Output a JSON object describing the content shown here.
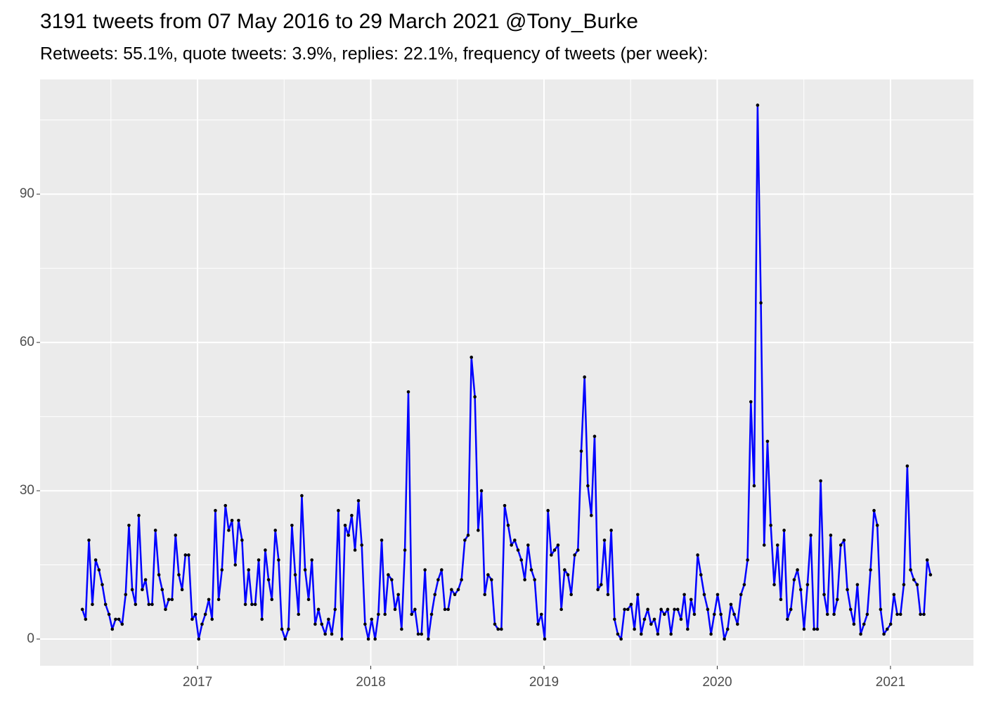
{
  "chart_data": {
    "type": "line",
    "title": "3191 tweets from 07 May 2016 to 29 March 2021 @Tony_Burke",
    "subtitle": "Retweets: 55.1%, quote tweets: 3.9%, replies: 22.1%, frequency of tweets (per week):",
    "color": "#0000ff",
    "point_color": "#000000",
    "grid": true,
    "xlim": [
      2016.091,
      2021.479
    ],
    "xticks": [
      2017,
      2018,
      2019,
      2020,
      2021
    ],
    "ylim": [
      -5.4,
      113.2
    ],
    "yticks": [
      0,
      30,
      60,
      90
    ],
    "x": [
      2016.335,
      2016.354,
      2016.373,
      2016.393,
      2016.412,
      2016.431,
      2016.45,
      2016.469,
      2016.489,
      2016.508,
      2016.527,
      2016.546,
      2016.565,
      2016.585,
      2016.604,
      2016.623,
      2016.642,
      2016.661,
      2016.681,
      2016.7,
      2016.719,
      2016.738,
      2016.757,
      2016.777,
      2016.796,
      2016.815,
      2016.834,
      2016.853,
      2016.873,
      2016.892,
      2016.911,
      2016.93,
      2016.949,
      2016.969,
      2016.988,
      2017.007,
      2017.026,
      2017.045,
      2017.065,
      2017.084,
      2017.103,
      2017.122,
      2017.141,
      2017.161,
      2017.18,
      2017.199,
      2017.218,
      2017.237,
      2017.257,
      2017.276,
      2017.295,
      2017.314,
      2017.333,
      2017.353,
      2017.372,
      2017.391,
      2017.41,
      2017.429,
      2017.449,
      2017.468,
      2017.487,
      2017.506,
      2017.525,
      2017.545,
      2017.564,
      2017.583,
      2017.602,
      2017.621,
      2017.641,
      2017.66,
      2017.679,
      2017.698,
      2017.717,
      2017.737,
      2017.756,
      2017.775,
      2017.794,
      2017.813,
      2017.833,
      2017.852,
      2017.871,
      2017.89,
      2017.909,
      2017.929,
      2017.948,
      2017.967,
      2017.986,
      2018.005,
      2018.025,
      2018.044,
      2018.063,
      2018.082,
      2018.101,
      2018.121,
      2018.14,
      2018.159,
      2018.178,
      2018.197,
      2018.217,
      2018.236,
      2018.255,
      2018.274,
      2018.293,
      2018.313,
      2018.332,
      2018.351,
      2018.37,
      2018.389,
      2018.409,
      2018.428,
      2018.447,
      2018.466,
      2018.485,
      2018.505,
      2018.524,
      2018.543,
      2018.562,
      2018.581,
      2018.601,
      2018.62,
      2018.639,
      2018.658,
      2018.677,
      2018.697,
      2018.716,
      2018.735,
      2018.754,
      2018.773,
      2018.793,
      2018.812,
      2018.831,
      2018.85,
      2018.869,
      2018.889,
      2018.908,
      2018.927,
      2018.946,
      2018.965,
      2018.985,
      2019.004,
      2019.023,
      2019.042,
      2019.061,
      2019.081,
      2019.1,
      2019.119,
      2019.138,
      2019.157,
      2019.177,
      2019.196,
      2019.215,
      2019.234,
      2019.253,
      2019.273,
      2019.292,
      2019.311,
      2019.33,
      2019.349,
      2019.369,
      2019.388,
      2019.407,
      2019.426,
      2019.445,
      2019.465,
      2019.484,
      2019.503,
      2019.522,
      2019.541,
      2019.561,
      2019.58,
      2019.599,
      2019.618,
      2019.637,
      2019.657,
      2019.676,
      2019.695,
      2019.714,
      2019.733,
      2019.753,
      2019.772,
      2019.791,
      2019.81,
      2019.829,
      2019.849,
      2019.868,
      2019.887,
      2019.906,
      2019.925,
      2019.945,
      2019.964,
      2019.983,
      2020.002,
      2020.021,
      2020.041,
      2020.06,
      2020.079,
      2020.098,
      2020.117,
      2020.137,
      2020.156,
      2020.175,
      2020.194,
      2020.213,
      2020.233,
      2020.252,
      2020.271,
      2020.29,
      2020.309,
      2020.329,
      2020.348,
      2020.367,
      2020.386,
      2020.405,
      2020.425,
      2020.444,
      2020.463,
      2020.482,
      2020.501,
      2020.521,
      2020.54,
      2020.559,
      2020.578,
      2020.597,
      2020.617,
      2020.636,
      2020.655,
      2020.674,
      2020.693,
      2020.713,
      2020.732,
      2020.751,
      2020.77,
      2020.789,
      2020.809,
      2020.828,
      2020.847,
      2020.866,
      2020.885,
      2020.905,
      2020.924,
      2020.943,
      2020.962,
      2020.981,
      2021.001,
      2021.02,
      2021.039,
      2021.058,
      2021.077,
      2021.097,
      2021.116,
      2021.135,
      2021.154,
      2021.173,
      2021.193,
      2021.212,
      2021.231
    ],
    "values": [
      6,
      4,
      20,
      7,
      16,
      14,
      11,
      7,
      5,
      2,
      4,
      4,
      3,
      9,
      23,
      10,
      7,
      25,
      10,
      12,
      7,
      7,
      22,
      13,
      10,
      6,
      8,
      8,
      21,
      13,
      10,
      17,
      17,
      4,
      5,
      0,
      3,
      5,
      8,
      4,
      26,
      8,
      14,
      27,
      22,
      24,
      15,
      24,
      20,
      7,
      14,
      7,
      7,
      16,
      4,
      18,
      12,
      8,
      22,
      16,
      2,
      0,
      2,
      23,
      13,
      5,
      29,
      14,
      8,
      16,
      3,
      6,
      3,
      1,
      4,
      1,
      6,
      26,
      0,
      23,
      21,
      25,
      18,
      28,
      19,
      3,
      0,
      4,
      0,
      5,
      20,
      5,
      13,
      12,
      6,
      9,
      2,
      18,
      50,
      5,
      6,
      1,
      1,
      14,
      0,
      5,
      9,
      12,
      14,
      6,
      6,
      10,
      9,
      10,
      12,
      20,
      21,
      57,
      49,
      22,
      30,
      9,
      13,
      12,
      3,
      2,
      2,
      27,
      23,
      19,
      20,
      18,
      16,
      12,
      19,
      14,
      12,
      3,
      5,
      0,
      26,
      17,
      18,
      19,
      6,
      14,
      13,
      9,
      17,
      18,
      38,
      53,
      31,
      25,
      41,
      10,
      11,
      20,
      9,
      22,
      4,
      1,
      0,
      6,
      6,
      7,
      2,
      9,
      1,
      4,
      6,
      3,
      4,
      1,
      6,
      5,
      6,
      1,
      6,
      6,
      4,
      9,
      2,
      8,
      5,
      17,
      13,
      9,
      6,
      1,
      5,
      9,
      5,
      0,
      2,
      7,
      5,
      3,
      9,
      11,
      16,
      48,
      31,
      108,
      68,
      19,
      40,
      23,
      11,
      19,
      8,
      22,
      4,
      6,
      12,
      14,
      10,
      2,
      11,
      21,
      2,
      2,
      32,
      9,
      5,
      21,
      5,
      8,
      19,
      20,
      10,
      6,
      3,
      11,
      1,
      3,
      5,
      14,
      26,
      23,
      6,
      1,
      2,
      3,
      9,
      5,
      5,
      11,
      35,
      14,
      12,
      11,
      5,
      5,
      16,
      13
    ]
  }
}
